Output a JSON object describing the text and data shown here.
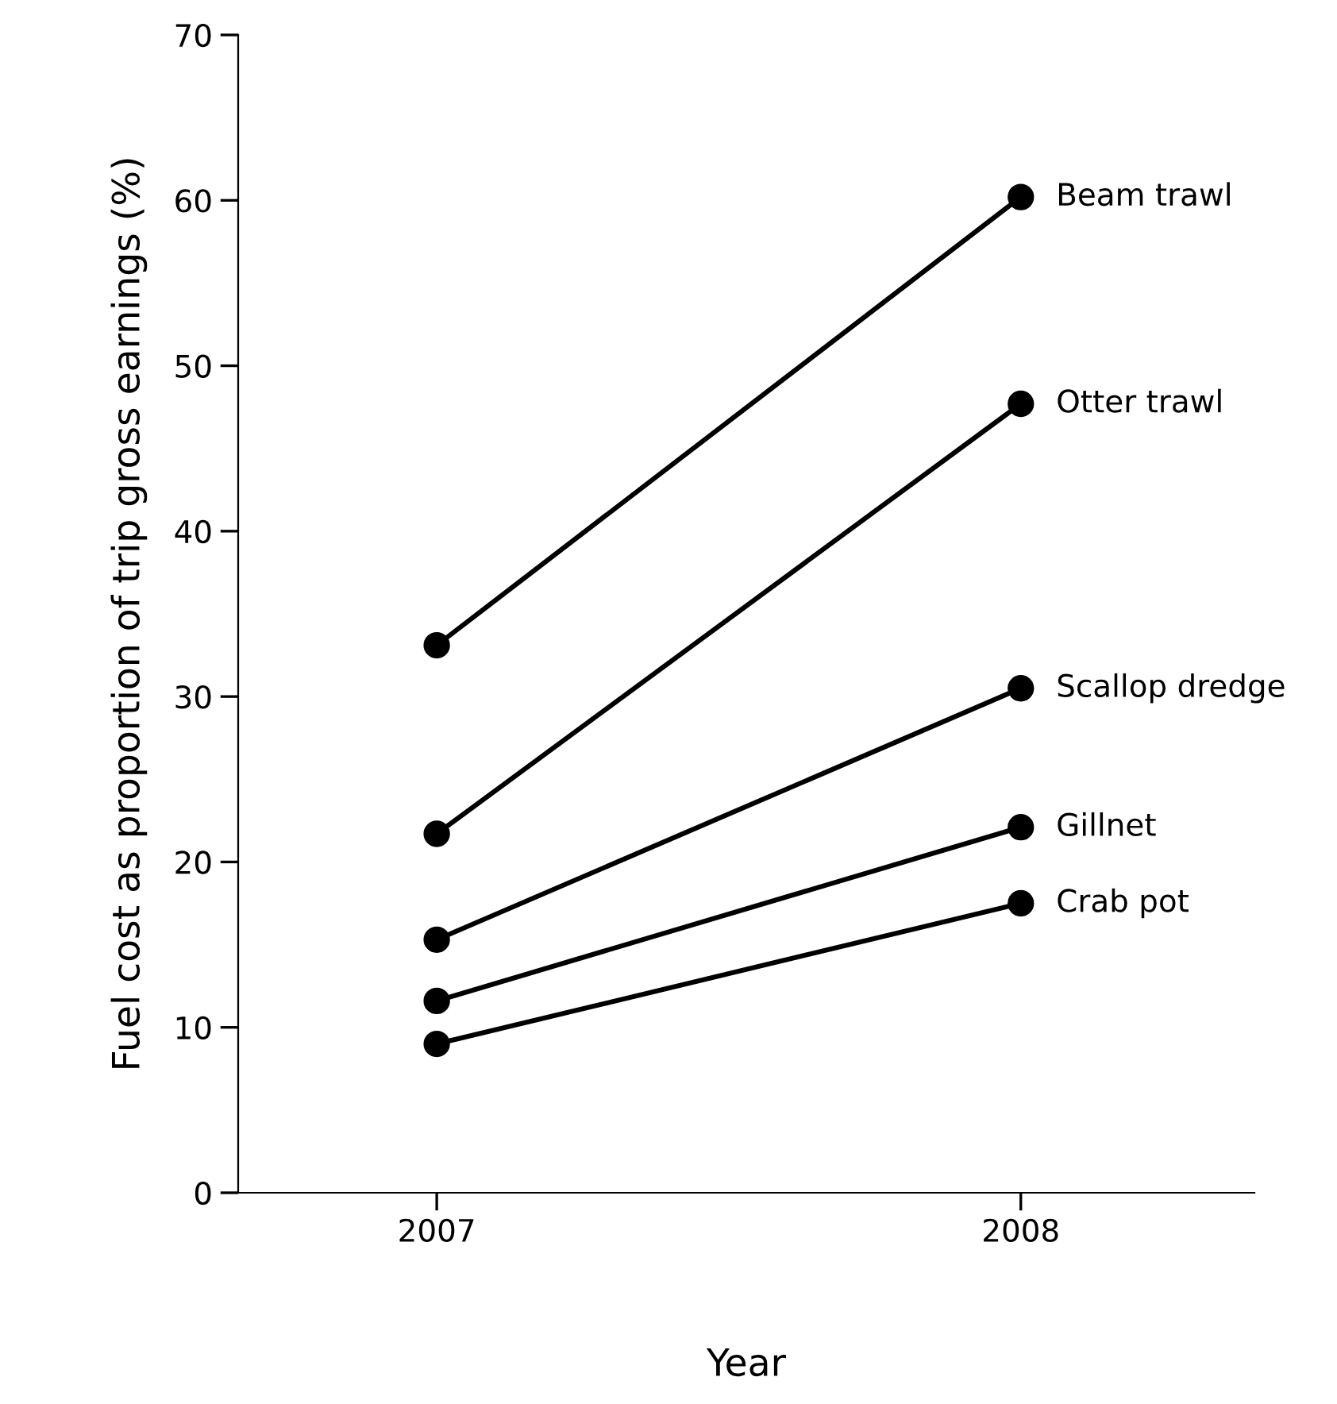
{
  "chart_data": {
    "type": "line",
    "xlabel": "Year",
    "ylabel": "Fuel cost as proportion of trip gross earnings (%)",
    "categories": [
      "2007",
      "2008"
    ],
    "series": [
      {
        "name": "Beam trawl",
        "color": "#000000",
        "values": [
          33.1,
          60.2
        ]
      },
      {
        "name": "Otter trawl",
        "color": "#000000",
        "values": [
          21.7,
          47.7
        ]
      },
      {
        "name": "Scallop dredge",
        "color": "#000000",
        "values": [
          15.3,
          30.5
        ]
      },
      {
        "name": "Gillnet",
        "color": "#000000",
        "values": [
          11.6,
          22.1
        ]
      },
      {
        "name": "Crab pot",
        "color": "#000000",
        "values": [
          9.0,
          17.5
        ]
      }
    ],
    "ylim": [
      0,
      70
    ],
    "yticks": [
      0,
      10,
      20,
      30,
      40,
      50,
      60,
      70
    ],
    "grid": false,
    "legend": false,
    "marker": "circle",
    "line_style": "solid"
  }
}
